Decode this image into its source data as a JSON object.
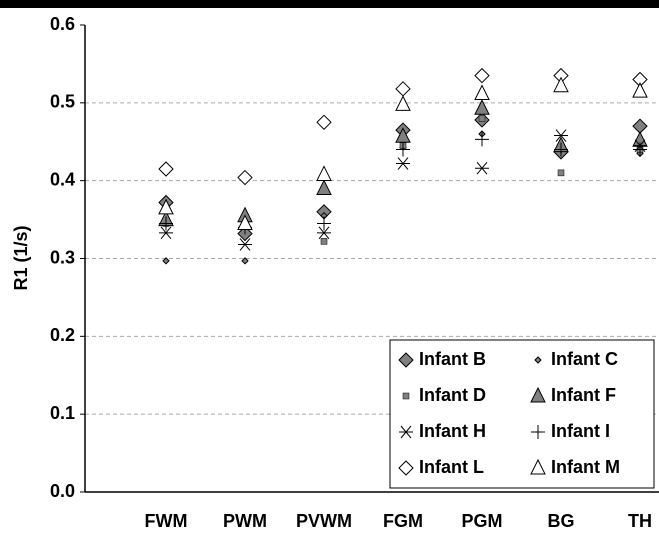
{
  "chart_data": {
    "type": "scatter",
    "y_label": "R1 (1/s)",
    "categories": [
      "FWM",
      "PWM",
      "PVWM",
      "FGM",
      "PGM",
      "BG",
      "TH"
    ],
    "ylim": [
      0,
      0.6
    ],
    "yticks": [
      {
        "value": 0,
        "label": "0.0"
      },
      {
        "value": 0.1,
        "label": "0.1"
      },
      {
        "value": 0.2,
        "label": "0.2"
      },
      {
        "value": 0.3,
        "label": "0.3"
      },
      {
        "value": 0.4,
        "label": "0.4"
      },
      {
        "value": 0.5,
        "label": "0.5"
      },
      {
        "value": 0.6,
        "label": "0.6"
      }
    ],
    "grid": true,
    "legend": "lower right",
    "series": [
      {
        "name": "Infant B",
        "marker": "diamond",
        "color": "#808080",
        "values": [
          0.372,
          0.332,
          0.36,
          0.465,
          0.478,
          0.437,
          0.47
        ]
      },
      {
        "name": "Infant C",
        "marker": "small-diamond",
        "color": "#808080",
        "values": [
          0.297,
          0.297,
          0.355,
          0.443,
          0.46,
          0.44,
          0.435
        ]
      },
      {
        "name": "Infant D",
        "marker": "square",
        "color": "#808080",
        "values": [
          0.345,
          0.345,
          0.322,
          0.445,
          0.48,
          0.41,
          0.44
        ]
      },
      {
        "name": "Infant F",
        "marker": "triangle",
        "color": "#808080",
        "values": [
          0.35,
          0.355,
          0.39,
          0.457,
          0.493,
          0.445,
          0.452
        ]
      },
      {
        "name": "Infant H",
        "marker": "asterisk",
        "color": "#000000",
        "values": [
          0.333,
          0.318,
          0.333,
          0.422,
          0.416,
          0.458,
          0.445
        ]
      },
      {
        "name": "Infant I",
        "marker": "plus",
        "color": "#000000",
        "values": [
          0.345,
          0.34,
          0.345,
          0.44,
          0.453,
          0.44,
          0.44
        ]
      },
      {
        "name": "Infant L",
        "marker": "open-diamond",
        "color": "#ffffff",
        "values": [
          0.415,
          0.404,
          0.475,
          0.518,
          0.535,
          0.535,
          0.53
        ]
      },
      {
        "name": "Infant M",
        "marker": "open-triangle",
        "color": "#ffffff",
        "values": [
          0.365,
          0.345,
          0.408,
          0.498,
          0.512,
          0.522,
          0.515
        ]
      }
    ]
  }
}
